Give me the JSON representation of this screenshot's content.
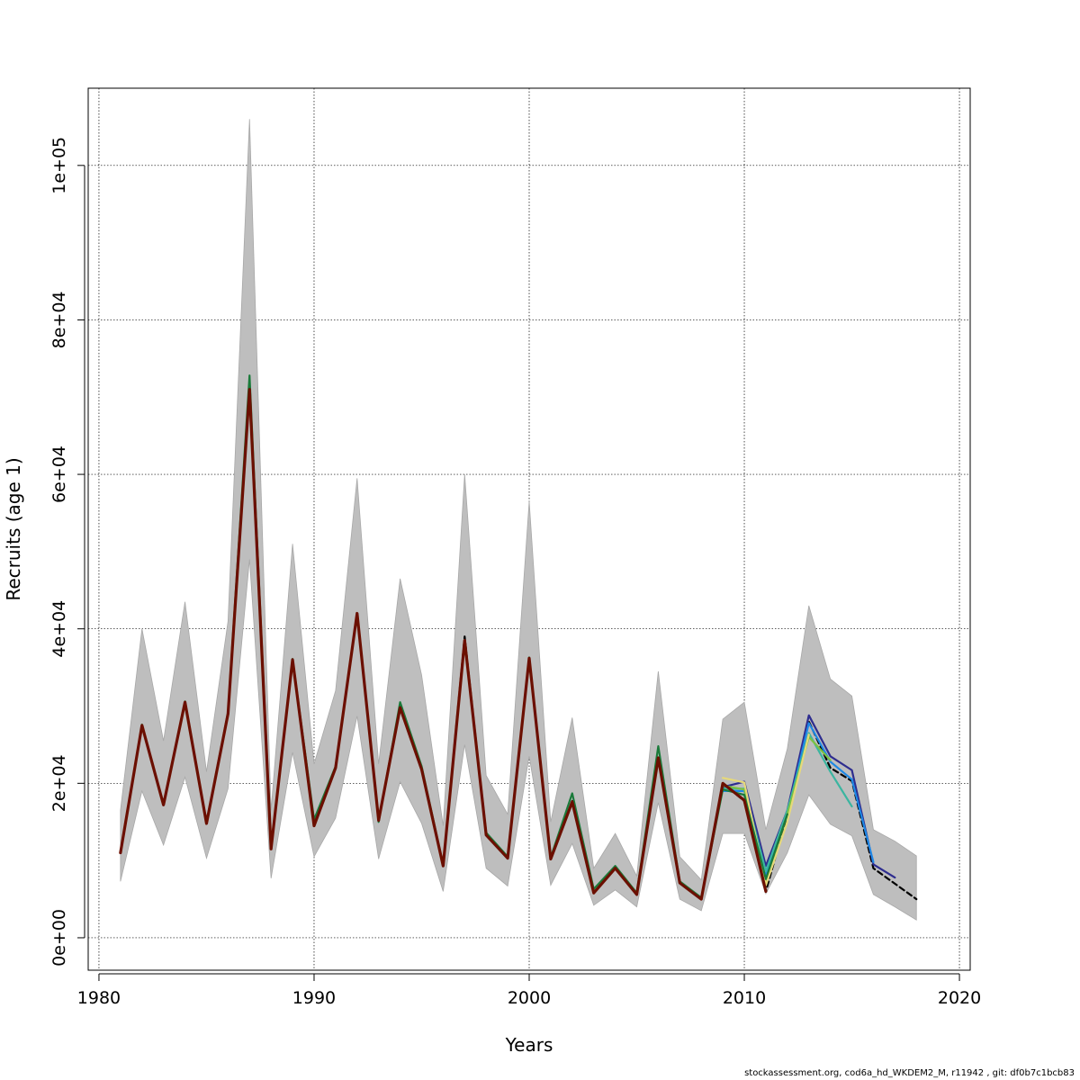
{
  "footer_text": "stockassessment.org, cod6a_hd_WKDEM2_M, r11942 , git: df0b7c1bcb83",
  "chart_data": {
    "type": "line",
    "title": "",
    "xlabel": "Years",
    "ylabel": "Recruits (age 1)",
    "xlim": [
      1979.5,
      2020.5
    ],
    "ylim": [
      -4200,
      110000
    ],
    "x_ticks": [
      1980,
      1990,
      2000,
      2010,
      2020
    ],
    "x_tick_labels": [
      "1980",
      "1990",
      "2000",
      "2010",
      "2020"
    ],
    "y_ticks": [
      0,
      20000,
      40000,
      60000,
      80000,
      100000
    ],
    "y_tick_labels": [
      "0e+00",
      "2e+04",
      "4e+04",
      "6e+04",
      "8e+04",
      "1e+05"
    ],
    "grid": true,
    "colors": {
      "band": "#bebebe",
      "band_edge": "#a8a8a8",
      "main": "#000000",
      "final": "#6b0f00"
    },
    "confidence_band": {
      "x": [
        1981,
        1982,
        1983,
        1984,
        1985,
        1986,
        1987,
        1988,
        1989,
        1990,
        1991,
        1992,
        1993,
        1994,
        1995,
        1996,
        1997,
        1998,
        1999,
        2000,
        2001,
        2002,
        2003,
        2004,
        2005,
        2006,
        2007,
        2008,
        2009,
        2010,
        2011,
        2012,
        2013,
        2014,
        2015,
        2016,
        2017,
        2018
      ],
      "lower": [
        7300,
        19000,
        12000,
        20800,
        10300,
        19300,
        49000,
        7700,
        24000,
        10500,
        15500,
        28700,
        10200,
        20200,
        14800,
        6000,
        25000,
        9000,
        6700,
        23500,
        6800,
        12200,
        4200,
        6200,
        4000,
        17500,
        5000,
        3500,
        13500,
        13500,
        5700,
        11000,
        18500,
        14700,
        13200,
        5600,
        4000,
        2300
      ],
      "upper": [
        16500,
        40000,
        25500,
        43500,
        21500,
        41000,
        106000,
        16500,
        51000,
        22500,
        32000,
        59500,
        22500,
        46500,
        34000,
        14500,
        60000,
        21000,
        16000,
        56500,
        15000,
        28500,
        9000,
        13500,
        8000,
        34500,
        10500,
        7500,
        28300,
        30500,
        14000,
        24500,
        43000,
        33500,
        31300,
        14000,
        12500,
        10600
      ]
    },
    "series": [
      {
        "color": "#000000",
        "dash": true,
        "width": 2.2,
        "x": [
          1981,
          1982,
          1983,
          1984,
          1985,
          1986,
          1987,
          1988,
          1989,
          1990,
          1991,
          1992,
          1993,
          1994,
          1995,
          1996,
          1997,
          1998,
          1999,
          2000,
          2001,
          2002,
          2003,
          2004,
          2005,
          2006,
          2007,
          2008,
          2009,
          2010,
          2011,
          2012,
          2013,
          2014,
          2015,
          2016,
          2017,
          2018
        ],
        "values": [
          11000,
          27500,
          17200,
          30500,
          14800,
          29000,
          71000,
          11500,
          36000,
          14500,
          22000,
          42000,
          15200,
          29800,
          21800,
          9300,
          39000,
          13300,
          10300,
          36200,
          10200,
          17700,
          5800,
          9000,
          5600,
          23300,
          7100,
          5000,
          20000,
          17700,
          6000,
          16000,
          28000,
          22000,
          20300,
          9000,
          7000,
          5000
        ]
      },
      {
        "color": "#2e2d8f",
        "dash": false,
        "width": 2.2,
        "x": [
          2009,
          2010,
          2011,
          2012,
          2013,
          2014,
          2015,
          2016,
          2017
        ],
        "values": [
          19500,
          20200,
          9300,
          16500,
          28800,
          23500,
          21700,
          9500,
          7800
        ]
      },
      {
        "color": "#1e88e5",
        "dash": false,
        "width": 2.2,
        "x": [
          2009,
          2010,
          2011,
          2012,
          2013,
          2014,
          2015,
          2016
        ],
        "values": [
          19000,
          19000,
          8200,
          16000,
          27800,
          22800,
          20500,
          9800
        ]
      },
      {
        "color": "#3bb5a0",
        "dash": false,
        "width": 2.2,
        "x": [
          2009,
          2010,
          2011,
          2012,
          2013,
          2014,
          2015
        ],
        "values": [
          19300,
          19300,
          8600,
          16500,
          26500,
          21500,
          17000
        ]
      },
      {
        "color": "#7cc142",
        "dash": false,
        "width": 2.2,
        "x": [
          2009,
          2010,
          2011,
          2012,
          2013,
          2014
        ],
        "values": [
          19700,
          19200,
          7400,
          16000,
          26000,
          23000
        ]
      },
      {
        "color": "#e6d97a",
        "dash": false,
        "width": 2.2,
        "x": [
          2009,
          2010,
          2011,
          2012,
          2013
        ],
        "values": [
          20700,
          20100,
          6800,
          15000,
          26300
        ]
      },
      {
        "color": "#1a7a3a",
        "dash": false,
        "width": 2.2,
        "x": [
          1981,
          1982,
          1983,
          1984,
          1985,
          1986,
          1987,
          1988,
          1989,
          1990,
          1991,
          1992,
          1993,
          1994,
          1995,
          1996,
          1997,
          1998,
          1999,
          2000,
          2001,
          2002,
          2003,
          2004,
          2005,
          2006,
          2007,
          2008,
          2009,
          2010,
          2011,
          2012
        ],
        "values": [
          11000,
          27600,
          17300,
          30600,
          14900,
          29200,
          72800,
          11700,
          36100,
          15300,
          22200,
          41900,
          15000,
          30500,
          22200,
          9400,
          38500,
          13600,
          10500,
          36300,
          10400,
          18700,
          6300,
          9300,
          5800,
          24800,
          7300,
          5200,
          19200,
          18500,
          7600,
          16000
        ]
      },
      {
        "color": "#6b0f00",
        "dash": false,
        "width": 3.2,
        "x": [
          1981,
          1982,
          1983,
          1984,
          1985,
          1986,
          1987,
          1988,
          1989,
          1990,
          1991,
          1992,
          1993,
          1994,
          1995,
          1996,
          1997,
          1998,
          1999,
          2000,
          2001,
          2002,
          2003,
          2004,
          2005,
          2006,
          2007,
          2008,
          2009,
          2010,
          2011
        ],
        "values": [
          11000,
          27500,
          17200,
          30500,
          14800,
          29000,
          71000,
          11500,
          36000,
          14500,
          22000,
          42000,
          15200,
          29800,
          21800,
          9300,
          38500,
          13300,
          10300,
          36200,
          10200,
          17600,
          5800,
          9000,
          5600,
          23300,
          7100,
          5000,
          20000,
          17800,
          6000
        ]
      }
    ]
  }
}
